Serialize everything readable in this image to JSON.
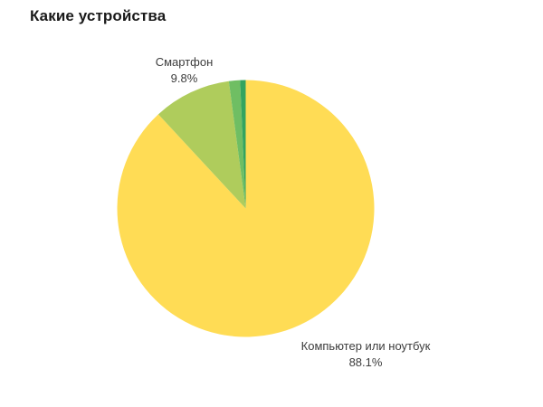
{
  "chart_data": {
    "type": "pie",
    "title": "Какие устройства",
    "legend": "none",
    "start_angle_deg": 0,
    "direction": "clockwise",
    "slices": [
      {
        "label": "Компьютер или ноутбук",
        "value": 88.1,
        "pct_label": "88.1%",
        "color": "#FFDC55",
        "labeled": true
      },
      {
        "label": "Смартфон",
        "value": 9.8,
        "pct_label": "9.8%",
        "color": "#AFCC5C",
        "labeled": true
      },
      {
        "label": "",
        "value": 1.4,
        "pct_label": "",
        "color": "#6FBE63",
        "labeled": false
      },
      {
        "label": "",
        "value": 0.7,
        "pct_label": "",
        "color": "#33A45F",
        "labeled": false
      }
    ],
    "background_color": "#FFFFFF",
    "title_color": "#1A1A1A",
    "label_color": "#3C3C3C"
  }
}
